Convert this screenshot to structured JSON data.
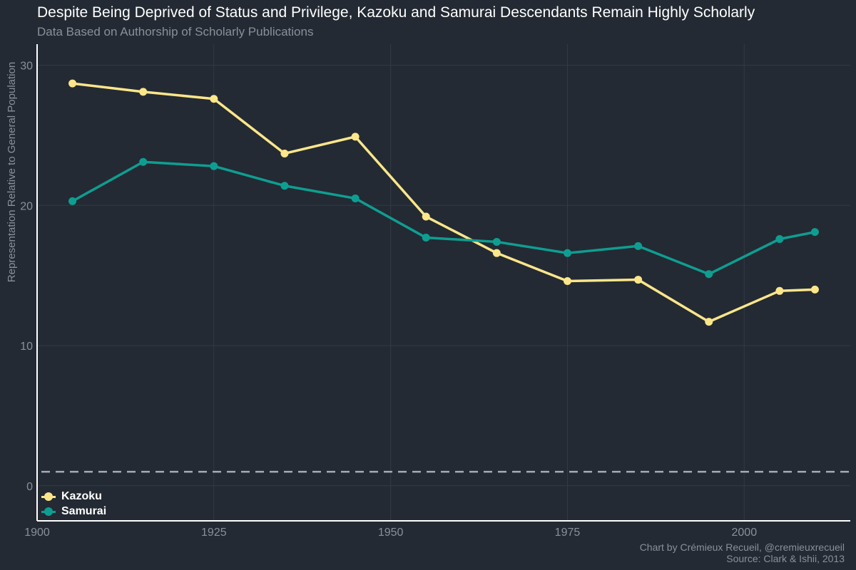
{
  "title": "Despite Being Deprived of Status and Privilege, Kazoku and Samurai Descendants Remain Highly Scholarly",
  "subtitle": "Data Based on Authorship of Scholarly Publications",
  "caption": {
    "line1": "Chart by Crémieux Recueil, @cremieuxrecueil",
    "line2": "Source: Clark & Ishii, 2013"
  },
  "chart_data": {
    "type": "line",
    "title": "Despite Being Deprived of Status and Privilege, Kazoku and Samurai Descendants Remain Highly Scholarly",
    "xlabel": "",
    "ylabel": "Representation Relative to General Population",
    "xlim": [
      1900,
      2015
    ],
    "ylim": [
      -2.5,
      31.5
    ],
    "x_ticks": [
      1900,
      1925,
      1950,
      1975,
      2000
    ],
    "y_ticks": [
      0,
      10,
      20,
      30
    ],
    "grid": true,
    "legend_position": "bottom-left",
    "reference_line": {
      "y": 1,
      "style": "dashed"
    },
    "x": [
      1905,
      1915,
      1925,
      1935,
      1945,
      1955,
      1965,
      1975,
      1985,
      1995,
      2005,
      2010
    ],
    "series": [
      {
        "name": "Kazoku",
        "color": "#fde68a",
        "values": [
          28.7,
          28.1,
          27.6,
          23.7,
          24.9,
          19.2,
          16.6,
          14.6,
          14.7,
          11.7,
          13.9,
          14.0
        ]
      },
      {
        "name": "Samurai",
        "color": "#0e9e91",
        "values": [
          20.3,
          23.1,
          22.8,
          21.4,
          20.5,
          17.7,
          17.4,
          16.6,
          17.1,
          15.1,
          17.6,
          18.1
        ]
      }
    ]
  }
}
